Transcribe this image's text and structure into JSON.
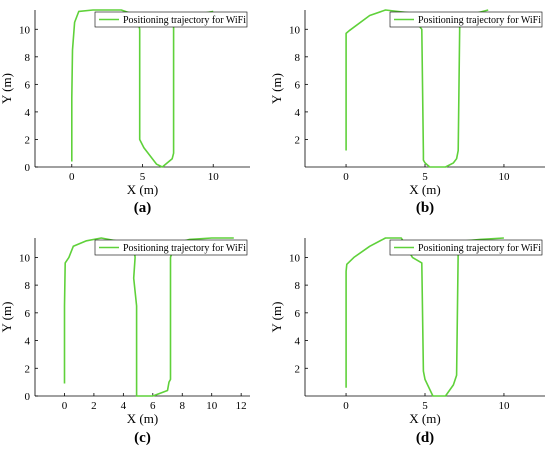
{
  "line_color": "#5fd13a",
  "chart_data": [
    {
      "type": "line",
      "panel": "(a)",
      "xlabel": "X (m)",
      "ylabel": "Y (m)",
      "xlim": [
        -2.6,
        12.6
      ],
      "ylim": [
        0,
        11.4
      ],
      "xticks": [
        0,
        5,
        10
      ],
      "yticks": [
        0,
        2,
        4,
        6,
        8,
        10
      ],
      "legend": "top-right",
      "series": [
        {
          "name": "Positioning trajectory for WiFi",
          "x": [
            0.0,
            0.0,
            0.05,
            0.2,
            0.5,
            1.5,
            3.5,
            4.6,
            4.8,
            4.8,
            5.1,
            6.0,
            6.4,
            7.1,
            7.2,
            7.2,
            7.3,
            8.5,
            10.0
          ],
          "y": [
            0.4,
            5.0,
            8.5,
            10.5,
            11.3,
            11.4,
            11.4,
            11.0,
            10.0,
            2.0,
            1.4,
            0.2,
            0.0,
            0.6,
            1.0,
            10.5,
            11.0,
            11.0,
            11.3
          ]
        }
      ]
    },
    {
      "type": "line",
      "panel": "(b)",
      "xlabel": "X (m)",
      "ylabel": "Y (m)",
      "xlim": [
        -2.6,
        12.6
      ],
      "ylim": [
        0,
        11.4
      ],
      "xticks": [
        0,
        5,
        10
      ],
      "yticks": [
        2,
        4,
        6,
        8,
        10
      ],
      "legend": "top-right",
      "series": [
        {
          "name": "Positioning trajectory for WiFi",
          "x": [
            0.0,
            0.0,
            0.2,
            1.5,
            2.5,
            4.0,
            4.8,
            4.9,
            4.9,
            5.0,
            5.3,
            5.5,
            6.3,
            6.8,
            7.0,
            7.1,
            7.2,
            8.0,
            9.0
          ],
          "y": [
            1.2,
            9.7,
            9.9,
            11.0,
            11.4,
            11.2,
            10.0,
            1.0,
            0.5,
            0.3,
            0.0,
            0.0,
            0.0,
            0.3,
            0.6,
            1.2,
            10.2,
            11.1,
            11.4
          ]
        }
      ]
    },
    {
      "type": "line",
      "panel": "(c)",
      "xlabel": "X (m)",
      "ylabel": "Y (m)",
      "xlim": [
        -2.0,
        12.6
      ],
      "ylim": [
        0,
        11.4
      ],
      "xticks": [
        0,
        2,
        4,
        6,
        8,
        10,
        12
      ],
      "yticks": [
        0,
        2,
        4,
        6,
        8,
        10
      ],
      "legend": "top-right",
      "series": [
        {
          "name": "Positioning trajectory for WiFi",
          "x": [
            0.0,
            0.0,
            0.05,
            0.3,
            0.6,
            1.5,
            2.5,
            3.5,
            4.5,
            4.7,
            4.8,
            4.7,
            4.9,
            4.9,
            5.0,
            6.0,
            6.5,
            7.0,
            7.1,
            7.2,
            7.2,
            7.5,
            8.5,
            10.0,
            11.5
          ],
          "y": [
            0.9,
            6.5,
            9.6,
            10.0,
            10.8,
            11.2,
            11.4,
            11.2,
            11.0,
            10.8,
            10.0,
            8.5,
            6.5,
            0.0,
            0.0,
            0.0,
            0.2,
            0.4,
            1.0,
            1.2,
            10.0,
            11.0,
            11.3,
            11.4,
            11.4
          ]
        }
      ]
    },
    {
      "type": "line",
      "panel": "(d)",
      "xlabel": "X (m)",
      "ylabel": "Y (m)",
      "xlim": [
        -2.6,
        12.6
      ],
      "ylim": [
        0,
        11.4
      ],
      "xticks": [
        0,
        5,
        10
      ],
      "yticks": [
        2,
        4,
        6,
        8,
        10
      ],
      "legend": "top-right",
      "series": [
        {
          "name": "Positioning trajectory for WiFi",
          "x": [
            0.0,
            0.0,
            0.05,
            0.5,
            1.5,
            2.5,
            3.5,
            4.2,
            4.8,
            4.9,
            5.0,
            5.5,
            6.3,
            6.8,
            7.0,
            7.1,
            7.2,
            7.6,
            8.5,
            10.0
          ],
          "y": [
            0.6,
            9.0,
            9.5,
            10.0,
            10.8,
            11.4,
            11.4,
            10.0,
            9.6,
            1.8,
            1.2,
            0.0,
            0.0,
            0.8,
            1.5,
            10.5,
            11.1,
            11.2,
            11.3,
            11.4
          ]
        }
      ]
    }
  ]
}
